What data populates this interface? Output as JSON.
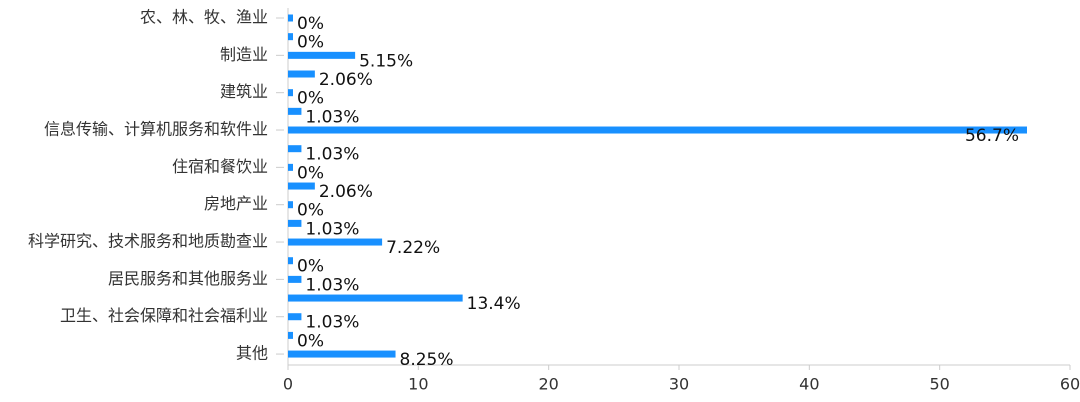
{
  "chart_data": {
    "type": "hbar",
    "categories": [
      "农、林、牧、渔业",
      null,
      "制造业",
      null,
      "建筑业",
      null,
      "信息传输、计算机服务和软件业",
      null,
      "住宿和餐饮业",
      null,
      "房地产业",
      null,
      "科学研究、技术服务和地质勘查业",
      null,
      "居民服务和其他服务业",
      null,
      "卫生、社会保障和社会福利业",
      null,
      "其他"
    ],
    "values": [
      0,
      0,
      5.15,
      2.06,
      0,
      1.03,
      56.7,
      1.03,
      0,
      2.06,
      0,
      1.03,
      7.22,
      0,
      1.03,
      13.4,
      1.03,
      0,
      8.25
    ],
    "value_labels": [
      "0%",
      "0%",
      "5.15%",
      "2.06%",
      "0%",
      "1.03%",
      "56.7%",
      "1.03%",
      "0%",
      "2.06%",
      "0%",
      "1.03%",
      "7.22%",
      "0%",
      "1.03%",
      "13.4%",
      "1.03%",
      "0%",
      "8.25%"
    ],
    "color": "#1890ff",
    "xlim": [
      0,
      60
    ],
    "xticks": [
      0,
      10,
      20,
      30,
      40,
      50,
      60
    ],
    "grid": false
  }
}
